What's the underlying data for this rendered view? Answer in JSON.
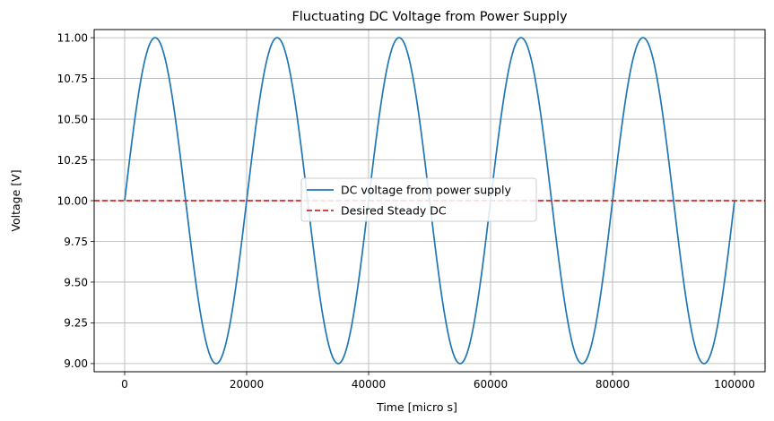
{
  "chart_data": {
    "type": "line",
    "title": "Fluctuating DC Voltage from Power Supply",
    "xlabel": "Time [micro s]",
    "ylabel": "Voltage [V]",
    "xlim": [
      -5000,
      105000
    ],
    "ylim": [
      8.95,
      11.05
    ],
    "x_ticks": [
      0,
      20000,
      40000,
      60000,
      80000,
      100000
    ],
    "x_tick_labels": [
      "0",
      "20000",
      "40000",
      "60000",
      "80000",
      "100000"
    ],
    "y_ticks": [
      9.0,
      9.25,
      9.5,
      9.75,
      10.0,
      10.25,
      10.5,
      10.75,
      11.0
    ],
    "y_tick_labels": [
      "9.00",
      "9.25",
      "9.50",
      "9.75",
      "10.00",
      "10.25",
      "10.50",
      "10.75",
      "11.00"
    ],
    "grid": true,
    "legend_position": "center",
    "series": [
      {
        "name": "DC voltage from power supply",
        "kind": "sine",
        "offset": 10.0,
        "amplitude": 1.0,
        "period": 20000,
        "x_start": 0,
        "x_end": 100000,
        "color": "#1f77b4",
        "style": "solid"
      },
      {
        "name": "Desired Steady DC",
        "kind": "hline",
        "value": 10.0,
        "color": "#d62728",
        "style": "dashed"
      }
    ]
  }
}
